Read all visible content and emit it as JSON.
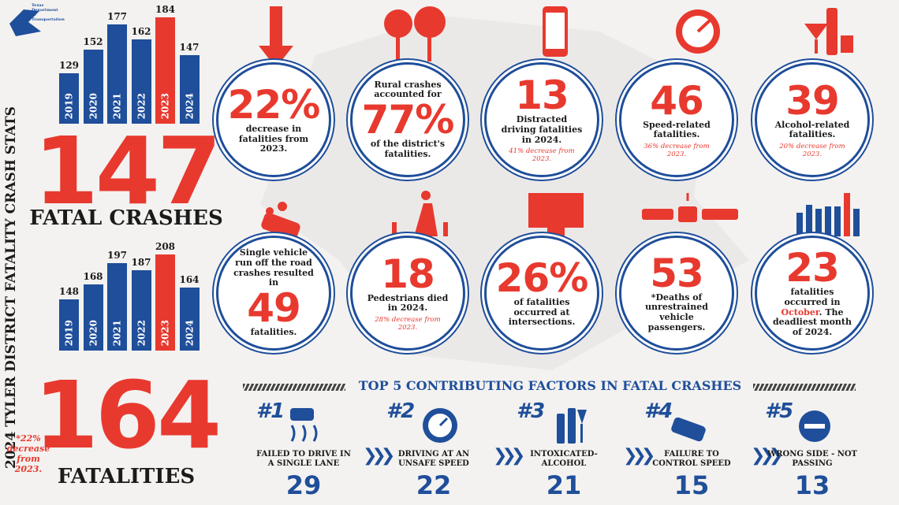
{
  "chart_data": [
    {
      "type": "bar",
      "categories": [
        "2019",
        "2020",
        "2021",
        "2022",
        "2023",
        "2024"
      ],
      "values": [
        129,
        152,
        177,
        162,
        184,
        147
      ],
      "colors": [
        "#1f4e9a",
        "#1f4e9a",
        "#1f4e9a",
        "#1f4e9a",
        "#e8392f",
        "#1f4e9a"
      ]
    },
    {
      "type": "bar",
      "categories": [
        "2019",
        "2020",
        "2021",
        "2022",
        "2023",
        "2024"
      ],
      "values": [
        148,
        168,
        197,
        187,
        208,
        164
      ],
      "colors": [
        "#1f4e9a",
        "#1f4e9a",
        "#1f4e9a",
        "#1f4e9a",
        "#e8392f",
        "#1f4e9a"
      ]
    }
  ],
  "logo": "Texas Department of Transportation",
  "title": "2024 TYLER DISTRICT FATALITY CRASH STATS",
  "totals": [
    {
      "figure": "147",
      "label": "FATAL CRASHES"
    },
    {
      "figure": "164",
      "label": "FATALITIES"
    }
  ],
  "footnote": "*22% decrease from 2023.",
  "stats": [
    {
      "figure": "22%",
      "after": "decrease in fatalities from 2023."
    },
    {
      "before": "Rural crashes accounted for",
      "figure": "77%",
      "after": "of the district's fatalities."
    },
    {
      "figure": "13",
      "after": "Distracted driving fatalities in 2024.",
      "note": "41% decrease from 2023."
    },
    {
      "figure": "46",
      "after": "Speed-related fatalities.",
      "note": "36% decrease from 2023."
    },
    {
      "figure": "39",
      "after": "Alcohol-related fatalities.",
      "note": "20% decrease from 2023."
    },
    {
      "before": "Single vehicle run off the road crashes resulted in",
      "figure": "49",
      "after": "fatalities."
    },
    {
      "figure": "18",
      "after": "Pedestrians died in 2024.",
      "note": "28% decrease from 2023."
    },
    {
      "figure": "26%",
      "after": "of fatalities occurred at intersections."
    },
    {
      "figure": "53",
      "after": "*Deaths of unrestrained vehicle passengers."
    },
    {
      "figure": "23",
      "after": "fatalities occurred in",
      "highlight": "October",
      "after_end": ". The deadliest month of 2024."
    }
  ],
  "factors": {
    "title": "TOP 5 CONTRIBUTING FACTORS IN FATAL CRASHES",
    "items": [
      {
        "rank": "#1",
        "label": "FAILED TO DRIVE IN A SINGLE LANE",
        "count": 29
      },
      {
        "rank": "#2",
        "label": "DRIVING AT AN UNSAFE SPEED",
        "count": 22
      },
      {
        "rank": "#3",
        "label": "INTOXICATED- ALCOHOL",
        "count": 21
      },
      {
        "rank": "#4",
        "label": "FAILURE TO CONTROL SPEED",
        "count": 15
      },
      {
        "rank": "#5",
        "label": "WRONG SIDE - NOT PASSING",
        "count": 13
      }
    ]
  }
}
